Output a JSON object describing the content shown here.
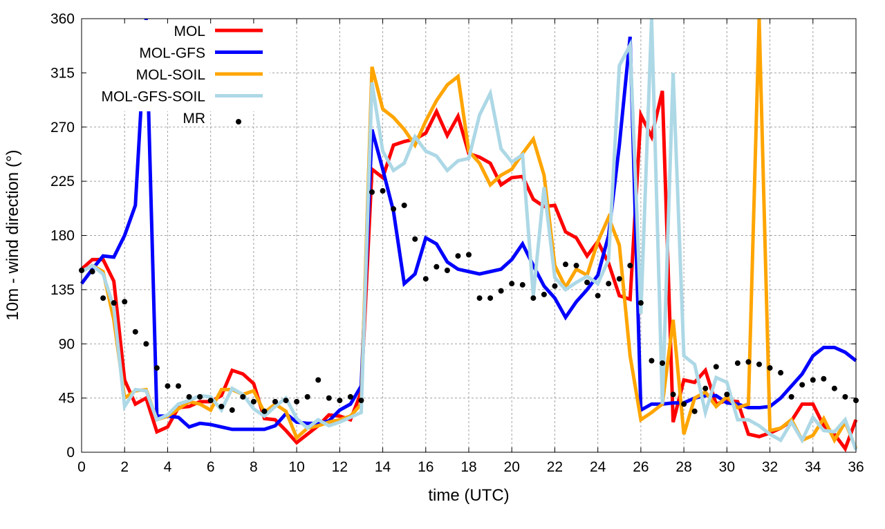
{
  "chart_data": {
    "type": "line",
    "title": "",
    "xlabel": "time (UTC)",
    "ylabel": "10m - wind direction (°)",
    "xlim": [
      0,
      36
    ],
    "ylim": [
      0,
      360
    ],
    "xticks": [
      0,
      2,
      4,
      6,
      8,
      10,
      12,
      14,
      16,
      18,
      20,
      22,
      24,
      26,
      28,
      30,
      32,
      34,
      36
    ],
    "yticks": [
      0,
      45,
      90,
      135,
      180,
      225,
      270,
      315,
      360
    ],
    "grid": true,
    "legend_position": "top-left",
    "x_step": 0.5,
    "series": [
      {
        "name": "MOL",
        "style": "line",
        "color": "#ff0000",
        "values": [
          152,
          160,
          160,
          142,
          60,
          40,
          45,
          17,
          21,
          37,
          38,
          42,
          42,
          47,
          68,
          65,
          57,
          28,
          27,
          18,
          8,
          15,
          22,
          31,
          30,
          27,
          50,
          235,
          228,
          255,
          258,
          260,
          265,
          283,
          263,
          279,
          248,
          245,
          240,
          222,
          228,
          229,
          210,
          204,
          205,
          183,
          178,
          163,
          175,
          157,
          130,
          127,
          280,
          262,
          300,
          25,
          60,
          58,
          68,
          40,
          43,
          42,
          15,
          13,
          16,
          20,
          26,
          40,
          40,
          22,
          15,
          3,
          27
        ]
      },
      {
        "name": "MOL-GFS",
        "style": "line",
        "color": "#0000ff",
        "values": [
          140,
          152,
          163,
          162,
          180,
          205,
          360,
          30,
          30,
          29,
          21,
          24,
          23,
          21,
          19,
          19,
          19,
          19,
          22,
          32,
          25,
          24,
          24,
          26,
          35,
          40,
          55,
          268,
          235,
          200,
          140,
          148,
          178,
          173,
          158,
          152,
          150,
          148,
          150,
          152,
          160,
          173,
          155,
          138,
          128,
          112,
          125,
          135,
          147,
          180,
          255,
          345,
          35,
          40,
          40,
          41,
          41,
          45,
          47,
          47,
          41,
          40,
          37,
          37,
          38,
          45,
          55,
          65,
          80,
          87,
          87,
          83,
          76
        ]
      },
      {
        "name": "MOL-SOIL",
        "style": "line",
        "color": "#ffa500",
        "values": [
          150,
          155,
          150,
          110,
          45,
          51,
          52,
          27,
          30,
          36,
          42,
          40,
          35,
          52,
          52,
          48,
          51,
          33,
          40,
          34,
          12,
          20,
          22,
          25,
          27,
          30,
          40,
          320,
          285,
          278,
          268,
          255,
          275,
          292,
          305,
          312,
          250,
          240,
          222,
          230,
          235,
          248,
          260,
          230,
          155,
          137,
          152,
          147,
          175,
          195,
          172,
          80,
          27,
          33,
          40,
          110,
          15,
          45,
          50,
          38,
          46,
          37,
          40,
          360,
          18,
          20,
          27,
          10,
          14,
          28,
          10,
          25,
          3
        ]
      },
      {
        "name": "MOL-GFS-SOIL",
        "style": "line",
        "color": "#add8e6",
        "values": [
          150,
          155,
          148,
          120,
          38,
          52,
          51,
          27,
          31,
          40,
          43,
          47,
          46,
          35,
          53,
          48,
          36,
          30,
          38,
          45,
          28,
          20,
          27,
          22,
          25,
          29,
          33,
          307,
          250,
          234,
          240,
          262,
          250,
          246,
          234,
          242,
          244,
          280,
          298,
          252,
          241,
          247,
          130,
          220,
          145,
          135,
          141,
          146,
          140,
          160,
          321,
          338,
          115,
          360,
          40,
          315,
          80,
          73,
          33,
          62,
          58,
          27,
          27,
          22,
          15,
          10,
          25,
          10,
          29,
          18,
          17,
          27,
          2
        ]
      },
      {
        "name": "MR",
        "style": "points",
        "color": "#000000",
        "values": [
          151,
          150,
          128,
          124,
          125,
          100,
          90,
          70,
          55,
          55,
          46,
          46,
          43,
          38,
          35,
          46,
          42,
          34,
          42,
          43,
          42,
          46,
          60,
          45,
          43,
          46,
          43,
          216,
          217,
          202,
          205,
          177,
          144,
          154,
          151,
          163,
          164,
          128,
          128,
          134,
          140,
          139,
          128,
          131,
          138,
          156,
          155,
          141,
          130,
          140,
          144,
          155,
          124,
          76,
          74,
          48,
          40,
          34,
          53,
          71,
          48,
          74,
          75,
          73,
          70,
          66,
          46,
          56,
          60,
          61,
          53,
          46,
          43
        ]
      }
    ]
  }
}
